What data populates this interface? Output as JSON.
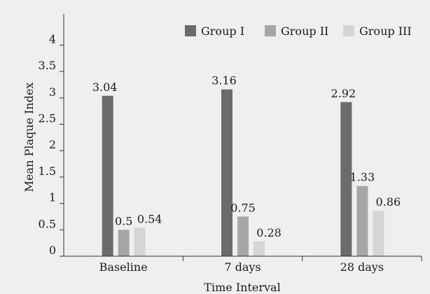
{
  "chart_data": {
    "type": "bar",
    "xlabel": "Time Interval",
    "ylabel": "Mean Plaque Index",
    "ylim": [
      0,
      4.5
    ],
    "yticks": [
      "0",
      "0.5",
      "1",
      "1.5",
      "2",
      "2.5",
      "3",
      "3.5",
      "4"
    ],
    "categories": [
      "Baseline",
      "7 days",
      "28 days"
    ],
    "series": [
      {
        "name": "Group I",
        "color": "#6b6b6e",
        "values": [
          3.04,
          3.16,
          2.92
        ],
        "labels": [
          "3.04",
          "3.16",
          "2.92"
        ]
      },
      {
        "name": "Group II",
        "color": "#a6a6a9",
        "values": [
          0.5,
          0.75,
          1.33
        ],
        "labels": [
          "0.5",
          "0.75",
          "1.33"
        ]
      },
      {
        "name": "Group III",
        "color": "#d5d5d6",
        "values": [
          0.54,
          0.28,
          0.86
        ],
        "labels": [
          "0.54",
          "0.28",
          "0.86"
        ]
      }
    ],
    "legend": "top-right",
    "grid": false
  }
}
